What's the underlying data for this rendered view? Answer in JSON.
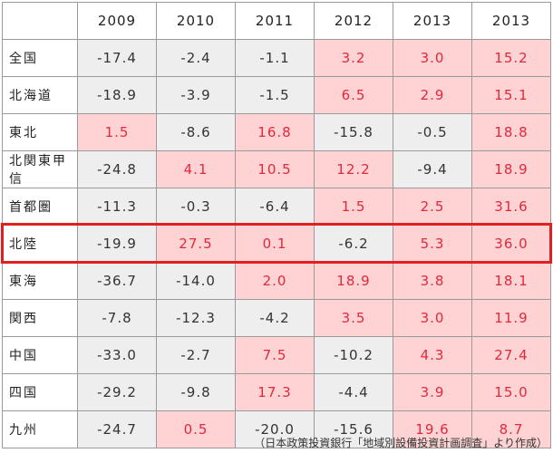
{
  "table": {
    "years": [
      "2009",
      "2010",
      "2011",
      "2012",
      "2013",
      "2013"
    ],
    "rows": [
      {
        "region": "全国",
        "values": [
          "-17.4",
          "-2.4",
          "-1.1",
          "3.2",
          "3.0",
          "15.2"
        ]
      },
      {
        "region": "北海道",
        "values": [
          "-18.9",
          "-3.9",
          "-1.5",
          "6.5",
          "2.9",
          "15.1"
        ]
      },
      {
        "region": "東北",
        "values": [
          "1.5",
          "-8.6",
          "16.8",
          "-15.8",
          "-0.5",
          "18.8"
        ]
      },
      {
        "region": "北関東甲信",
        "values": [
          "-24.8",
          "4.1",
          "10.5",
          "12.2",
          "-9.4",
          "18.9"
        ]
      },
      {
        "region": "首都圏",
        "values": [
          "-11.3",
          "-0.3",
          "-6.4",
          "1.5",
          "2.5",
          "31.6"
        ]
      },
      {
        "region": "北陸",
        "values": [
          "-19.9",
          "27.5",
          "0.1",
          "-6.2",
          "5.3",
          "36.0"
        ]
      },
      {
        "region": "東海",
        "values": [
          "-36.7",
          "-14.0",
          "2.0",
          "18.9",
          "3.8",
          "18.1"
        ]
      },
      {
        "region": "関西",
        "values": [
          "-7.8",
          "-12.3",
          "-4.2",
          "3.5",
          "3.0",
          "11.9"
        ]
      },
      {
        "region": "中国",
        "values": [
          "-33.0",
          "-2.7",
          "7.5",
          "-10.2",
          "4.3",
          "27.4"
        ]
      },
      {
        "region": "四国",
        "values": [
          "-29.2",
          "-9.8",
          "17.3",
          "-4.4",
          "3.9",
          "15.0"
        ]
      },
      {
        "region": "九州",
        "values": [
          "-24.7",
          "0.5",
          "-20.0",
          "-15.6",
          "19.6",
          "8.7"
        ]
      }
    ],
    "highlighted_region": "北陸"
  },
  "colors": {
    "positive_bg": "#ffd3d3",
    "positive_text": "#e2283c",
    "negative_bg": "#eeeeee",
    "highlight_border": "#e02020"
  },
  "source": "（日本政策投資銀行「地域別設備投資計画調査」より作成）"
}
